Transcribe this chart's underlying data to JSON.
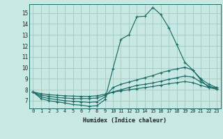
{
  "xlabel": "Humidex (Indice chaleur)",
  "bg_color": "#c8e8e4",
  "grid_color": "#a8ccc8",
  "line_color": "#1a6b65",
  "spine_color": "#1a6b65",
  "xlim": [
    -0.5,
    23.5
  ],
  "ylim": [
    6.3,
    15.8
  ],
  "yticks": [
    7,
    8,
    9,
    10,
    11,
    12,
    13,
    14,
    15
  ],
  "xticks": [
    0,
    1,
    2,
    3,
    4,
    5,
    6,
    7,
    8,
    9,
    10,
    11,
    12,
    13,
    14,
    15,
    16,
    17,
    18,
    19,
    20,
    21,
    22,
    23
  ],
  "xtick_labels": [
    "0",
    "1",
    "2",
    "3",
    "4",
    "5",
    "6",
    "7",
    "8",
    "9",
    "10",
    "11",
    "12",
    "13",
    "14",
    "15",
    "16",
    "17",
    "18",
    "19",
    "20",
    "21",
    "22",
    "23"
  ],
  "series": [
    [
      7.8,
      7.2,
      7.0,
      6.9,
      6.8,
      6.65,
      6.6,
      6.5,
      6.55,
      7.1,
      9.9,
      12.6,
      13.0,
      14.65,
      14.7,
      15.5,
      14.85,
      13.65,
      12.1,
      10.5,
      9.8,
      8.9,
      8.2,
      8.2
    ],
    [
      7.8,
      7.35,
      7.2,
      7.1,
      7.0,
      6.95,
      6.9,
      6.85,
      6.9,
      7.35,
      8.2,
      8.5,
      8.7,
      8.9,
      9.1,
      9.3,
      9.55,
      9.75,
      9.9,
      10.05,
      9.8,
      9.0,
      8.5,
      8.2
    ],
    [
      7.8,
      7.5,
      7.4,
      7.3,
      7.25,
      7.2,
      7.2,
      7.2,
      7.25,
      7.5,
      7.8,
      8.0,
      8.2,
      8.4,
      8.5,
      8.62,
      8.78,
      8.95,
      9.1,
      9.25,
      9.15,
      8.7,
      8.35,
      8.1
    ],
    [
      7.8,
      7.65,
      7.55,
      7.5,
      7.45,
      7.42,
      7.4,
      7.4,
      7.45,
      7.6,
      7.78,
      7.9,
      8.0,
      8.1,
      8.2,
      8.3,
      8.42,
      8.55,
      8.65,
      8.75,
      8.65,
      8.4,
      8.2,
      8.05
    ]
  ]
}
